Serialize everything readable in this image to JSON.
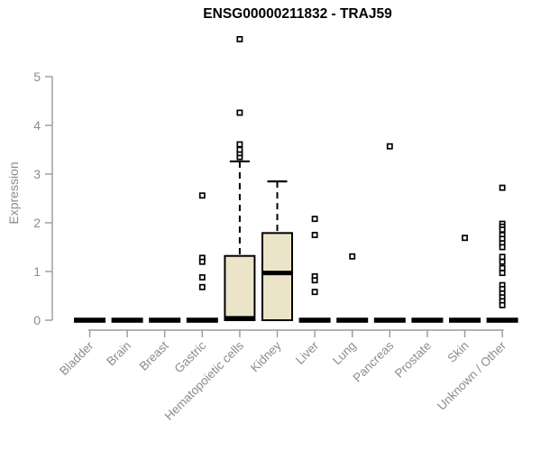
{
  "chart_data": {
    "type": "boxplot",
    "title": "ENSG00000211832 - TRAJ59",
    "ylabel": "Expression",
    "xlabel": "",
    "ylim": [
      0,
      5.9
    ],
    "yticks": [
      0,
      1,
      2,
      3,
      4,
      5
    ],
    "grid": false,
    "legend": "none",
    "colors": {
      "box_fill": "#ECE4C8",
      "box_stroke": "#000000",
      "axis_color": "#9A9A9A",
      "label_color": "#8C8C8C",
      "title_color": "#000000",
      "outlier_fill": "#FFFFFF"
    },
    "categories": [
      "Bladder",
      "Brain",
      "Breast",
      "Gastric",
      "Hematopoietic cells",
      "Kidney",
      "Liver",
      "Lung",
      "Pancreas",
      "Prostate",
      "Skin",
      "Unknown / Other"
    ],
    "boxes": [
      {
        "category": "Bladder",
        "q1": 0,
        "median": 0,
        "q3": 0,
        "whisker_low": 0,
        "whisker_high": 0,
        "outliers": []
      },
      {
        "category": "Brain",
        "q1": 0,
        "median": 0,
        "q3": 0,
        "whisker_low": 0,
        "whisker_high": 0,
        "outliers": []
      },
      {
        "category": "Breast",
        "q1": 0,
        "median": 0,
        "q3": 0,
        "whisker_low": 0,
        "whisker_high": 0,
        "outliers": []
      },
      {
        "category": "Gastric",
        "q1": 0,
        "median": 0,
        "q3": 0,
        "whisker_low": 0,
        "whisker_high": 0,
        "outliers": [
          2.56,
          1.28,
          1.2,
          0.88,
          0.68
        ]
      },
      {
        "category": "Hematopoietic cells",
        "q1": 0,
        "median": 0.04,
        "q3": 1.32,
        "whisker_low": 0,
        "whisker_high": 3.26,
        "outliers": [
          3.35,
          3.43,
          3.5,
          3.61,
          4.26,
          5.77
        ]
      },
      {
        "category": "Kidney",
        "q1": 0,
        "median": 0.97,
        "q3": 1.79,
        "whisker_low": 0,
        "whisker_high": 2.85,
        "outliers": []
      },
      {
        "category": "Liver",
        "q1": 0,
        "median": 0,
        "q3": 0,
        "whisker_low": 0,
        "whisker_high": 0,
        "outliers": [
          2.08,
          1.75,
          0.9,
          0.82,
          0.58
        ]
      },
      {
        "category": "Lung",
        "q1": 0,
        "median": 0,
        "q3": 0,
        "whisker_low": 0,
        "whisker_high": 0,
        "outliers": [
          1.31
        ]
      },
      {
        "category": "Pancreas",
        "q1": 0,
        "median": 0,
        "q3": 0,
        "whisker_low": 0,
        "whisker_high": 0,
        "outliers": [
          3.57
        ]
      },
      {
        "category": "Prostate",
        "q1": 0,
        "median": 0,
        "q3": 0,
        "whisker_low": 0,
        "whisker_high": 0,
        "outliers": []
      },
      {
        "category": "Skin",
        "q1": 0,
        "median": 0,
        "q3": 0,
        "whisker_low": 0,
        "whisker_high": 0,
        "outliers": [
          1.69
        ]
      },
      {
        "category": "Unknown / Other",
        "q1": 0,
        "median": 0,
        "q3": 0,
        "whisker_low": 0,
        "whisker_high": 0,
        "outliers": [
          2.72,
          1.98,
          1.92,
          1.86,
          1.75,
          1.67,
          1.58,
          1.5,
          1.3,
          1.2,
          1.07,
          0.97,
          0.72,
          0.64,
          0.55,
          0.47,
          0.39,
          0.31
        ]
      }
    ]
  }
}
